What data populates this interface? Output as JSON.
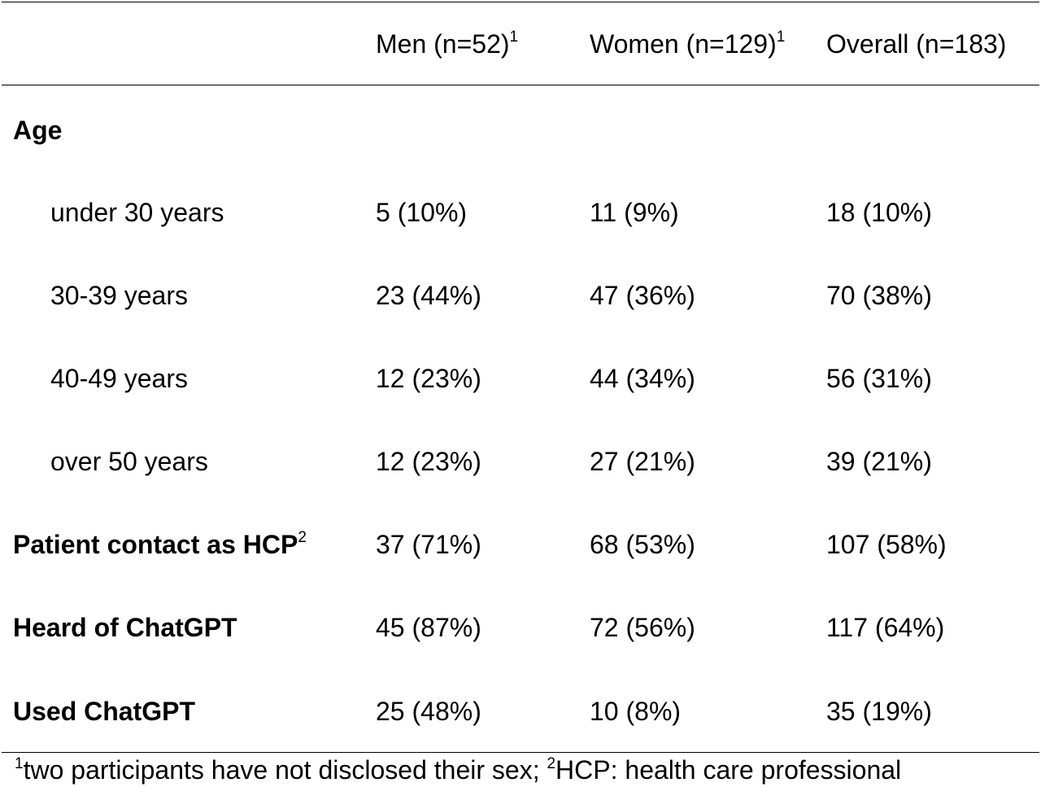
{
  "header": {
    "columns": [
      {
        "label": "Men (n=52)",
        "sup": "1"
      },
      {
        "label": "Women (n=129)",
        "sup": "1"
      },
      {
        "label": "Overall (n=183)",
        "sup": ""
      }
    ]
  },
  "rows": [
    {
      "label": "Age",
      "sup": "",
      "values": [
        "",
        "",
        ""
      ]
    },
    {
      "label": "under 30 years",
      "sup": "",
      "values": [
        "5 (10%)",
        "11 (9%)",
        "18 (10%)"
      ]
    },
    {
      "label": "30-39 years",
      "sup": "",
      "values": [
        "23 (44%)",
        "47 (36%)",
        "70 (38%)"
      ]
    },
    {
      "label": "40-49 years",
      "sup": "",
      "values": [
        "12 (23%)",
        "44 (34%)",
        "56 (31%)"
      ]
    },
    {
      "label": "over 50 years",
      "sup": "",
      "values": [
        "12 (23%)",
        "27 (21%)",
        "39 (21%)"
      ]
    },
    {
      "label": "Patient contact as HCP",
      "sup": "2",
      "values": [
        "37 (71%)",
        "68 (53%)",
        "107 (58%)"
      ]
    },
    {
      "label": "Heard of ChatGPT",
      "sup": "",
      "values": [
        "45 (87%)",
        "72 (56%)",
        "117 (64%)"
      ]
    },
    {
      "label": "Used ChatGPT",
      "sup": "",
      "values": [
        "25 (48%)",
        "10 (8%)",
        "35 (19%)"
      ]
    }
  ],
  "footnote": {
    "sup1": "1",
    "text1": "two participants have not disclosed their sex; ",
    "sup2": "2",
    "text2": "HCP: health care professional"
  }
}
